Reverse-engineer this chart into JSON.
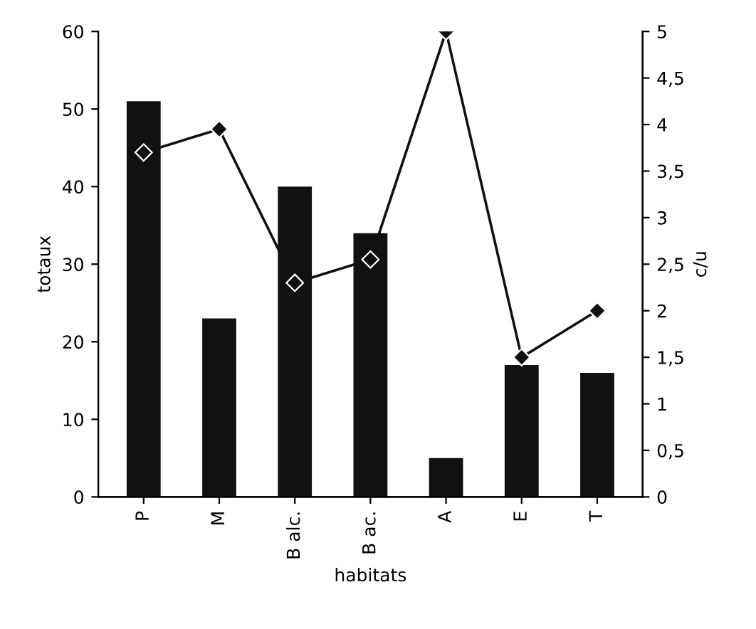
{
  "chart_data": {
    "type": "bar",
    "xlabel": "habitats",
    "ylabel": "totaux",
    "y2label": "c/u",
    "categories": [
      "P",
      "M",
      "B alc.",
      "B ac.",
      "A",
      "E",
      "T"
    ],
    "series": [
      {
        "color": "#111111",
        "values": [
          51,
          23,
          40,
          34,
          5,
          17,
          16
        ]
      },
      {
        "type": "line",
        "axis": "y2",
        "color": "#111111",
        "marker": "diamond",
        "line_style": "solid",
        "values": [
          3.7,
          3.95,
          2.3,
          2.55,
          5,
          1.5,
          2
        ]
      }
    ],
    "ylim": [
      0,
      60
    ],
    "yticks": [
      0,
      10,
      20,
      30,
      40,
      50,
      60
    ],
    "y2lim": [
      0,
      5
    ],
    "y2ticks": [
      0,
      {
        "value": 0.5,
        "label": "0,5"
      },
      1,
      {
        "value": 1.5,
        "label": "1,5"
      },
      2,
      {
        "value": 2.5,
        "label": "2,5"
      },
      3,
      {
        "value": 3.5,
        "label": "3,5"
      },
      4,
      {
        "value": 4.5,
        "label": "4,5"
      },
      5
    ],
    "legend": false
  }
}
